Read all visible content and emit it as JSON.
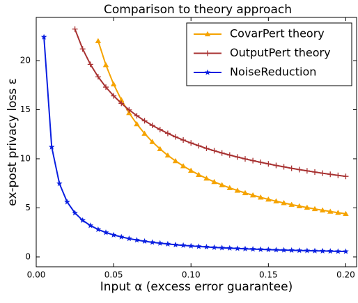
{
  "chart_data": {
    "type": "line",
    "title": "Comparison to theory approach",
    "xlabel": "Input α (excess error guarantee)",
    "ylabel": "ex-post privacy loss ε",
    "xlim": [
      0,
      0.207
    ],
    "ylim": [
      -1,
      24.4
    ],
    "xticks": [
      {
        "value": 0,
        "label": "0.00"
      },
      {
        "value": 0.05,
        "label": "0.05"
      },
      {
        "value": 0.1,
        "label": "0.10"
      },
      {
        "value": 0.15,
        "label": "0.15"
      },
      {
        "value": 0.2,
        "label": "0.20"
      }
    ],
    "yticks": [
      0,
      5,
      10,
      15,
      20
    ],
    "legend": "upper right",
    "series": [
      {
        "name": "CovarPert theory",
        "color": "#f5a300",
        "marker": "triangle",
        "x": [
          0.04,
          0.045,
          0.05,
          0.055,
          0.06,
          0.065,
          0.07,
          0.075,
          0.08,
          0.085,
          0.09,
          0.095,
          0.1,
          0.105,
          0.11,
          0.115,
          0.12,
          0.125,
          0.13,
          0.135,
          0.14,
          0.145,
          0.15,
          0.155,
          0.16,
          0.165,
          0.17,
          0.175,
          0.18,
          0.185,
          0.19,
          0.195,
          0.2
        ],
        "values": [
          22,
          19.56,
          17.6,
          16,
          14.67,
          13.54,
          12.57,
          11.73,
          11,
          10.35,
          9.78,
          9.26,
          8.8,
          8.38,
          8,
          7.65,
          7.33,
          7.04,
          6.77,
          6.52,
          6.29,
          6.07,
          5.87,
          5.68,
          5.5,
          5.33,
          5.18,
          5.03,
          4.89,
          4.76,
          4.63,
          4.51,
          4.4
        ]
      },
      {
        "name": "OutputPert theory",
        "color": "#a83232",
        "marker": "plus",
        "x": [
          0.025,
          0.03,
          0.035,
          0.04,
          0.045,
          0.05,
          0.055,
          0.06,
          0.065,
          0.07,
          0.075,
          0.08,
          0.085,
          0.09,
          0.095,
          0.1,
          0.105,
          0.11,
          0.115,
          0.12,
          0.125,
          0.13,
          0.135,
          0.14,
          0.145,
          0.15,
          0.155,
          0.16,
          0.165,
          0.17,
          0.175,
          0.18,
          0.185,
          0.19,
          0.195,
          0.2
        ],
        "values": [
          23.21,
          21.19,
          19.62,
          18.35,
          17.3,
          16.41,
          15.65,
          14.98,
          14.39,
          13.87,
          13.4,
          12.98,
          12.59,
          12.23,
          11.91,
          11.61,
          11.33,
          11.06,
          10.82,
          10.59,
          10.38,
          10.18,
          9.99,
          9.81,
          9.64,
          9.48,
          9.32,
          9.18,
          9.03,
          8.9,
          8.77,
          8.65,
          8.53,
          8.42,
          8.31,
          8.21
        ]
      },
      {
        "name": "NoiseReduction",
        "color": "#0a1fe0",
        "marker": "star",
        "x": [
          0.005,
          0.01,
          0.015,
          0.02,
          0.025,
          0.03,
          0.035,
          0.04,
          0.045,
          0.05,
          0.055,
          0.06,
          0.065,
          0.07,
          0.075,
          0.08,
          0.085,
          0.09,
          0.095,
          0.1,
          0.105,
          0.11,
          0.115,
          0.12,
          0.125,
          0.13,
          0.135,
          0.14,
          0.145,
          0.15,
          0.155,
          0.16,
          0.165,
          0.17,
          0.175,
          0.18,
          0.185,
          0.19,
          0.195,
          0.2
        ],
        "values": [
          22.4,
          11.2,
          7.47,
          5.6,
          4.48,
          3.73,
          3.2,
          2.8,
          2.49,
          2.24,
          2.04,
          1.87,
          1.72,
          1.6,
          1.49,
          1.4,
          1.32,
          1.24,
          1.18,
          1.12,
          1.07,
          1.02,
          0.97,
          0.93,
          0.9,
          0.86,
          0.83,
          0.8,
          0.77,
          0.75,
          0.72,
          0.7,
          0.68,
          0.66,
          0.64,
          0.62,
          0.61,
          0.59,
          0.57,
          0.56
        ]
      }
    ]
  }
}
